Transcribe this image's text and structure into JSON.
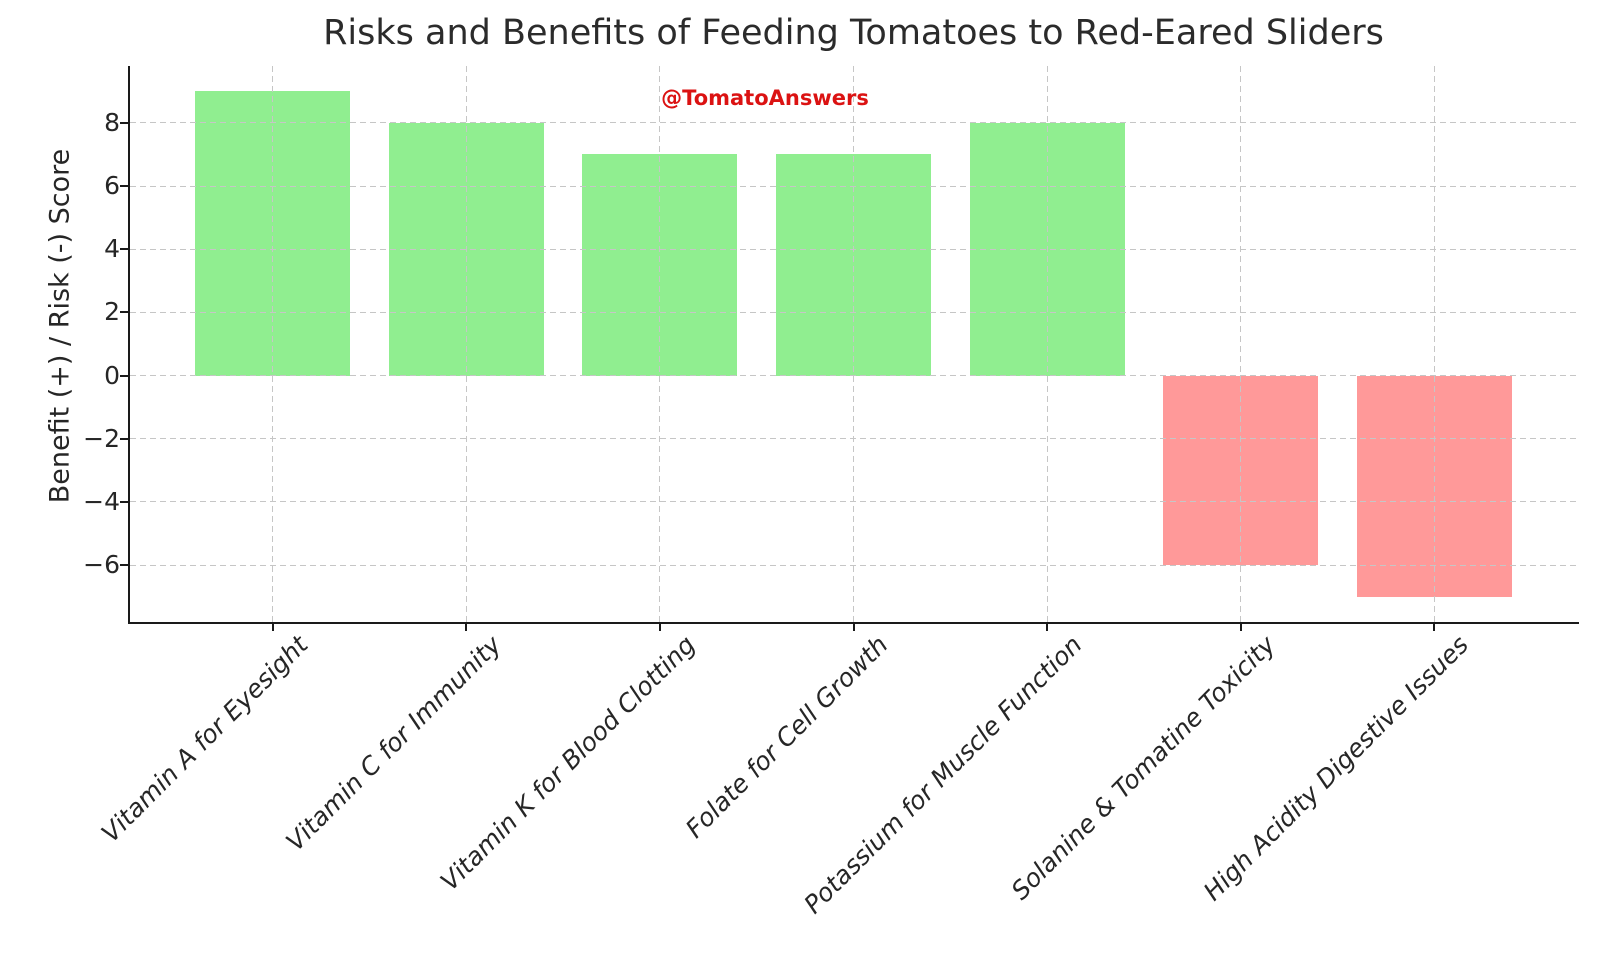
{
  "chart_data": {
    "type": "bar",
    "title": "Risks and Benefits of Feeding Tomatoes to Red-Eared Sliders",
    "watermark": "@TomatoAnswers",
    "ylabel": "Benefit (+) / Risk (-) Score",
    "xlabel": "",
    "categories": [
      "Vitamin A for Eyesight",
      "Vitamin C for Immunity",
      "Vitamin K for Blood Clotting",
      "Folate for Cell Growth",
      "Potassium for Muscle Function",
      "Solanine & Tomatine Toxicity",
      "High Acidity Digestive Issues"
    ],
    "values": [
      9,
      8,
      7,
      7,
      8,
      -6,
      -7
    ],
    "yticks": [
      8,
      6,
      4,
      2,
      0,
      -2,
      -4,
      -6
    ],
    "ylim": [
      -7.8,
      9.8
    ],
    "xlim": [
      -0.739,
      6.739
    ],
    "bar_width": 0.8,
    "grid": true,
    "grid_linestyle": "dashed",
    "legend": "none",
    "x_tick_rotation_deg": 45,
    "x_tick_fontstyle": "italic",
    "colors": {
      "positive_bar": "#90EE90",
      "negative_bar": "#FF9999",
      "watermark": "#DB1212",
      "gridline": "#C6C6C6",
      "axis": "#1A1A1A",
      "text": "#262626"
    }
  }
}
